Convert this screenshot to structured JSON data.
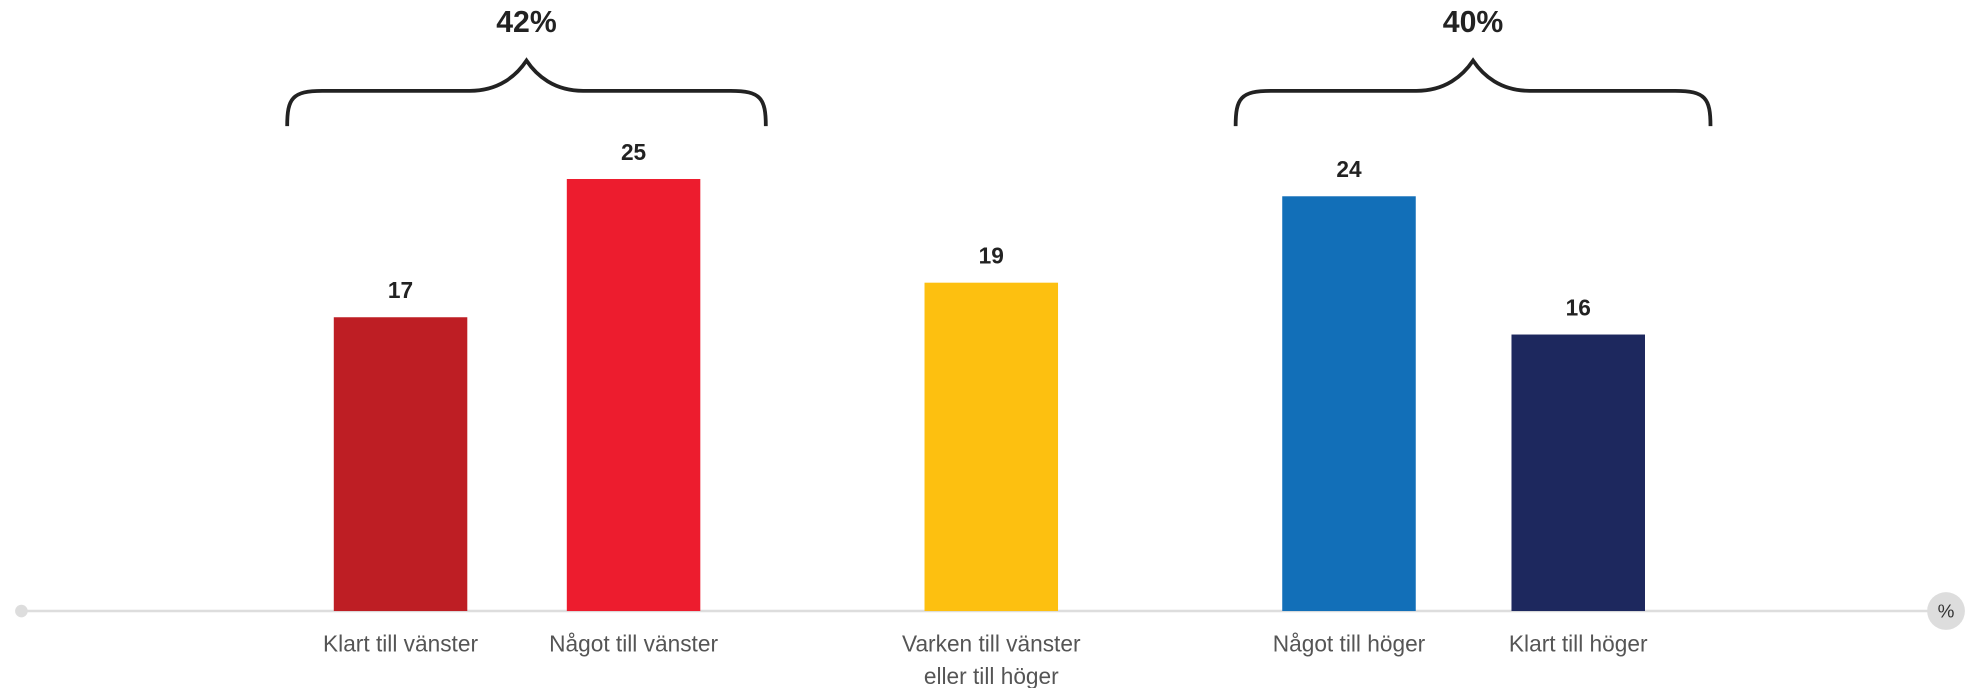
{
  "chart_data": {
    "type": "bar",
    "categories": [
      "Klart till vänster",
      "Något till vänster",
      "Varken till vänster eller till höger",
      "Något till höger",
      "Klart till höger"
    ],
    "values": [
      17,
      25,
      19,
      24,
      16
    ],
    "colors": [
      "#be1e24",
      "#ed1c2e",
      "#fdc010",
      "#126fb8",
      "#1d285e"
    ],
    "unit": "%",
    "groups": [
      {
        "label": "42%",
        "categories": [
          "Klart till vänster",
          "Något till vänster"
        ]
      },
      {
        "label": "40%",
        "categories": [
          "Något till höger",
          "Klart till höger"
        ]
      }
    ]
  }
}
